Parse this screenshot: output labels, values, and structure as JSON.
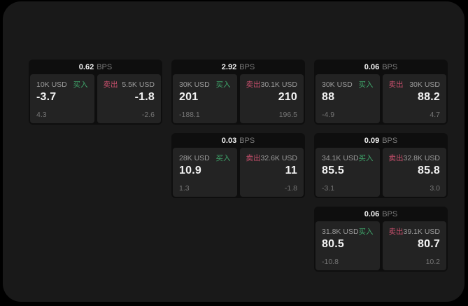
{
  "colors": {
    "outer_background": "#000000",
    "panel_background": "#191919",
    "card_background": "#0e0e0e",
    "tile_background": "#232323",
    "buy_green": "#3fa46a",
    "sell_red": "#c9506d",
    "label_gray": "#9b9b9b",
    "sub_gray": "#757575",
    "value_white": "#f2f2f2"
  },
  "labels": {
    "bps_unit": "BPS",
    "buy": "买入",
    "sell": "卖出"
  },
  "cards": [
    {
      "bps": "0.62",
      "buy": {
        "size": "10K USD",
        "value": "-3.7",
        "sub": "4.3"
      },
      "sell": {
        "size": "5.5K USD",
        "value": "-1.8",
        "sub": "-2.6"
      }
    },
    {
      "bps": "2.92",
      "buy": {
        "size": "30K USD",
        "value": "201",
        "sub": "-188.1"
      },
      "sell": {
        "size": "30.1K USD",
        "value": "210",
        "sub": "196.5"
      }
    },
    {
      "bps": "0.06",
      "buy": {
        "size": "30K USD",
        "value": "88",
        "sub": "-4.9"
      },
      "sell": {
        "size": "30K USD",
        "value": "88.2",
        "sub": "4.7"
      }
    },
    {
      "bps": "0.03",
      "buy": {
        "size": "28K USD",
        "value": "10.9",
        "sub": "1.3"
      },
      "sell": {
        "size": "32.6K USD",
        "value": "11",
        "sub": "-1.8"
      }
    },
    {
      "bps": "0.09",
      "buy": {
        "size": "34.1K USD",
        "value": "85.5",
        "sub": "-3.1"
      },
      "sell": {
        "size": "32.8K USD",
        "value": "85.8",
        "sub": "3.0"
      }
    },
    {
      "bps": "0.06",
      "buy": {
        "size": "31.8K USD",
        "value": "80.5",
        "sub": "-10.8"
      },
      "sell": {
        "size": "39.1K USD",
        "value": "80.7",
        "sub": "10.2"
      }
    }
  ]
}
